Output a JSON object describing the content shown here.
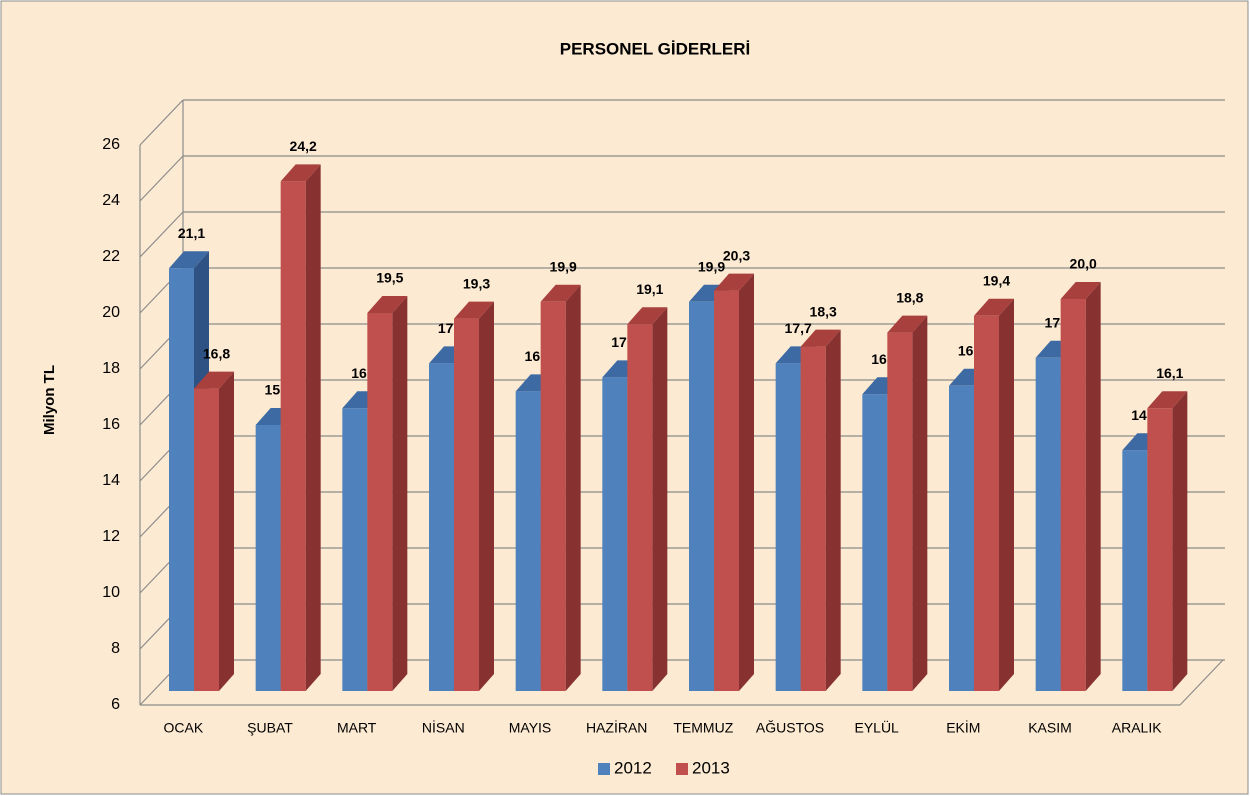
{
  "chart_data": {
    "type": "bar3d",
    "title": "PERSONEL GİDERLERİ",
    "y_label": "Milyon TL",
    "categories": [
      "OCAK",
      "ŞUBAT",
      "MART",
      "NİSAN",
      "MAYIS",
      "HAZİRAN",
      "TEMMUZ",
      "AĞUSTOS",
      "EYLÜL",
      "EKİM",
      "KASIM",
      "ARALIK"
    ],
    "series": [
      {
        "name": "2012",
        "color": "#4f81bd",
        "values": [
          21.1,
          15.5,
          16.1,
          17.7,
          16.7,
          17.2,
          19.9,
          17.7,
          16.6,
          16.9,
          17.9,
          14.6
        ],
        "value_labels": [
          "21,1",
          "15,5",
          "16,1",
          "17,7",
          "16,7",
          "17,2",
          "19,9",
          "17,7",
          "16,6",
          "16,9",
          "17,9",
          "14,6"
        ]
      },
      {
        "name": "2013",
        "color": "#c0504d",
        "values": [
          16.8,
          24.2,
          19.5,
          19.3,
          19.9,
          19.1,
          20.3,
          18.3,
          18.8,
          19.4,
          20.0,
          16.1
        ],
        "value_labels": [
          "16,8",
          "24,2",
          "19,5",
          "19,3",
          "19,9",
          "19,1",
          "20,3",
          "18,3",
          "18,8",
          "19,4",
          "20,0",
          "16,1"
        ]
      }
    ],
    "ylim": [
      6,
      26
    ],
    "yticks": [
      6,
      8,
      10,
      12,
      14,
      16,
      18,
      20,
      22,
      24,
      26
    ],
    "grid": true,
    "legend": "bottom"
  }
}
